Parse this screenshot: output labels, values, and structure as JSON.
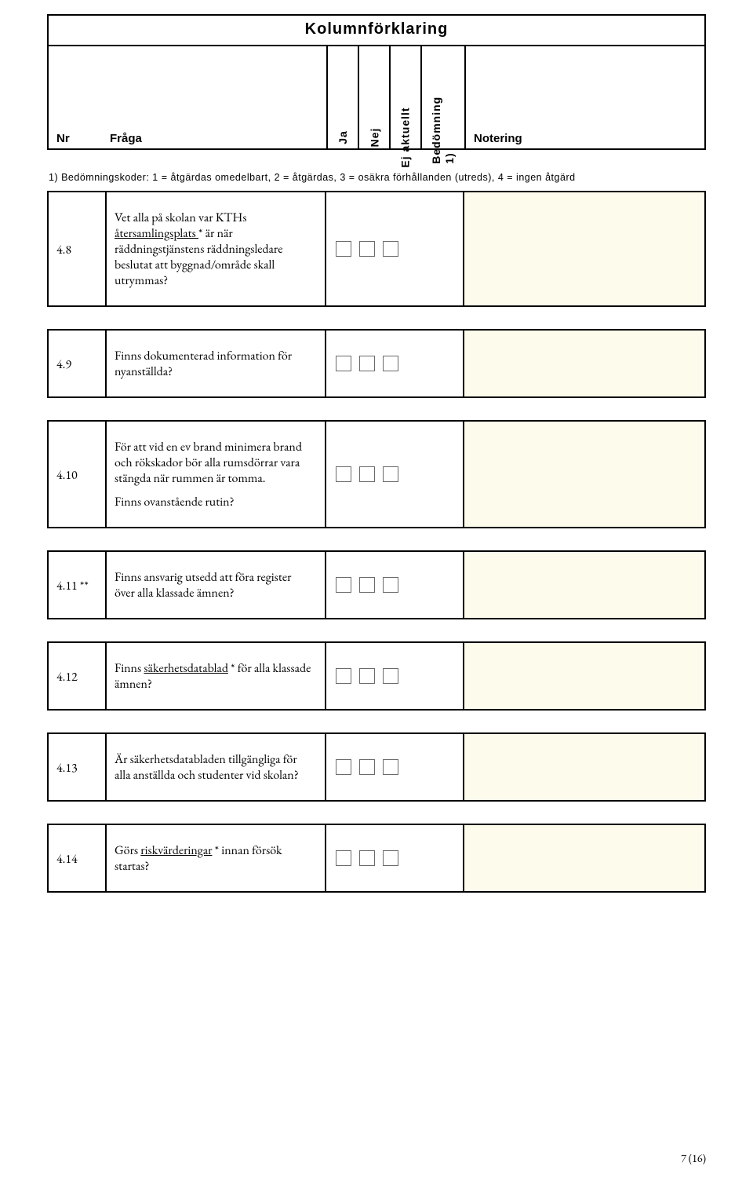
{
  "header": {
    "title": "Kolumnförklaring",
    "nr": "Nr",
    "fraga": "Fråga",
    "ja": "Ja",
    "nej": "Nej",
    "ej_aktuellt": "Ej aktuellt",
    "bedomning_line1": "Bedömning",
    "bedomning_line2": "1)",
    "notering": "Notering"
  },
  "legend": "1) Bedömningskoder:  1 = åtgärdas omedelbart, 2 = åtgärdas, 3 = osäkra förhållanden (utreds), 4 = ingen åtgärd",
  "questions": [
    {
      "nr": "4.8",
      "text_pre": "Vet alla på skolan var KTHs ",
      "underlined": "återsamlingsplats ",
      "text_post": " * är när räddningstjänstens räddningsledare beslutat att byggnad/område skall utrymmas?"
    },
    {
      "nr": "4.9",
      "text_pre": "Finns dokumenterad information för nyanställda?",
      "underlined": "",
      "text_post": ""
    },
    {
      "nr": "4.10",
      "text_pre": "För att vid en ev brand minimera brand och rökskador bör alla rumsdörrar vara stängda när rummen är tomma.",
      "underlined": "",
      "text_post": "",
      "extra_line": "Finns ovanstående rutin?"
    },
    {
      "nr": "4.11 **",
      "text_pre": "Finns ansvarig utsedd att föra register över alla klassade ämnen?",
      "underlined": "",
      "text_post": ""
    },
    {
      "nr": "4.12",
      "text_pre": "Finns ",
      "underlined": "säkerhetsdatablad",
      "text_post": " * för alla klassade ämnen?"
    },
    {
      "nr": "4.13",
      "text_pre": "Är säkerhetsdatabladen tillgängliga för alla anställda och studenter vid skolan?",
      "underlined": "",
      "text_post": ""
    },
    {
      "nr": "4.14",
      "text_pre": "Görs ",
      "underlined": "riskvärderingar",
      "text_post": " * innan försök startas?"
    }
  ],
  "page_number": "7 (16)",
  "colors": {
    "note_bg": "#fdfcec",
    "border": "#000000",
    "checkbox_border": "#6b6b6b"
  }
}
